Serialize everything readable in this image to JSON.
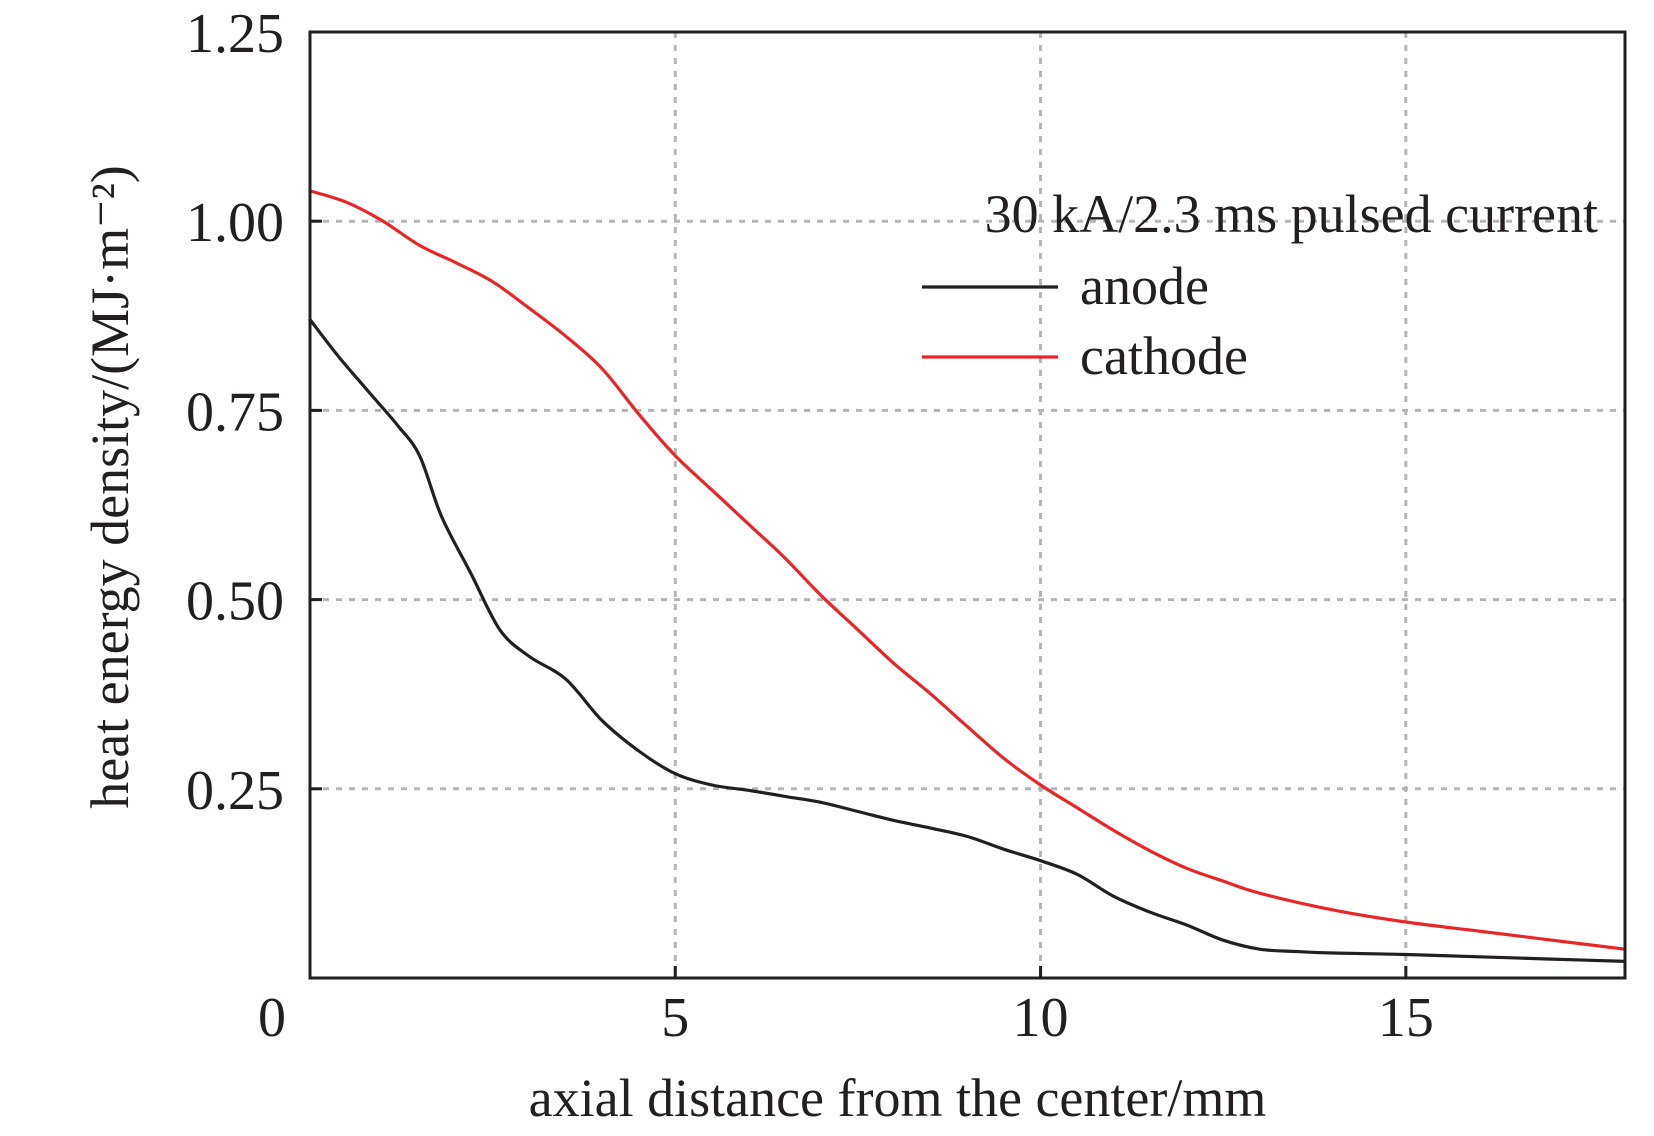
{
  "chart_data": {
    "type": "line",
    "title": "",
    "xlabel": "axial distance from the center/mm",
    "ylabel": "heat energy density/(MJ·m⁻²)",
    "xlim": [
      0,
      18
    ],
    "ylim": [
      0,
      1.25
    ],
    "xticks": [
      0,
      5,
      10,
      15
    ],
    "xtick_labels": [
      "0",
      "5",
      "10",
      "15"
    ],
    "yticks": [
      0.25,
      0.5,
      0.75,
      1.0,
      1.25
    ],
    "ytick_labels": [
      "0.25",
      "0.50",
      "0.75",
      "1.00",
      "1.25"
    ],
    "grid": true,
    "legend": {
      "title": "30 kA/2.3 ms pulsed current",
      "position": "top-right"
    },
    "series": [
      {
        "name": "anode",
        "color": "#231f20",
        "x": [
          0,
          0.4,
          0.8,
          1.2,
          1.5,
          1.8,
          2.2,
          2.6,
          3.0,
          3.5,
          4.0,
          4.5,
          5.0,
          5.5,
          6.0,
          6.5,
          7.0,
          7.5,
          8.0,
          8.5,
          9.0,
          9.5,
          10.0,
          10.5,
          11.0,
          11.5,
          12.0,
          12.5,
          13.0,
          13.5,
          14.0,
          15.0,
          16.0,
          17.0,
          18.0
        ],
        "y": [
          0.87,
          0.82,
          0.775,
          0.73,
          0.69,
          0.61,
          0.535,
          0.46,
          0.425,
          0.395,
          0.34,
          0.3,
          0.27,
          0.255,
          0.248,
          0.24,
          0.232,
          0.22,
          0.208,
          0.198,
          0.187,
          0.17,
          0.155,
          0.137,
          0.108,
          0.087,
          0.07,
          0.05,
          0.038,
          0.035,
          0.033,
          0.031,
          0.028,
          0.025,
          0.022
        ]
      },
      {
        "name": "cathode",
        "color": "#e8262a",
        "x": [
          0,
          0.5,
          1.0,
          1.5,
          2.0,
          2.5,
          3.0,
          3.5,
          4.0,
          4.5,
          5.0,
          5.5,
          6.0,
          6.5,
          7.0,
          7.5,
          8.0,
          8.5,
          9.0,
          9.5,
          10.0,
          10.5,
          11.0,
          11.5,
          12.0,
          12.5,
          13.0,
          14.0,
          15.0,
          16.0,
          17.0,
          18.0
        ],
        "y": [
          1.04,
          1.025,
          1.0,
          0.968,
          0.945,
          0.92,
          0.885,
          0.848,
          0.805,
          0.745,
          0.69,
          0.645,
          0.6,
          0.555,
          0.505,
          0.46,
          0.415,
          0.375,
          0.332,
          0.29,
          0.255,
          0.225,
          0.195,
          0.168,
          0.145,
          0.128,
          0.112,
          0.09,
          0.074,
          0.062,
          0.05,
          0.038
        ]
      }
    ]
  }
}
